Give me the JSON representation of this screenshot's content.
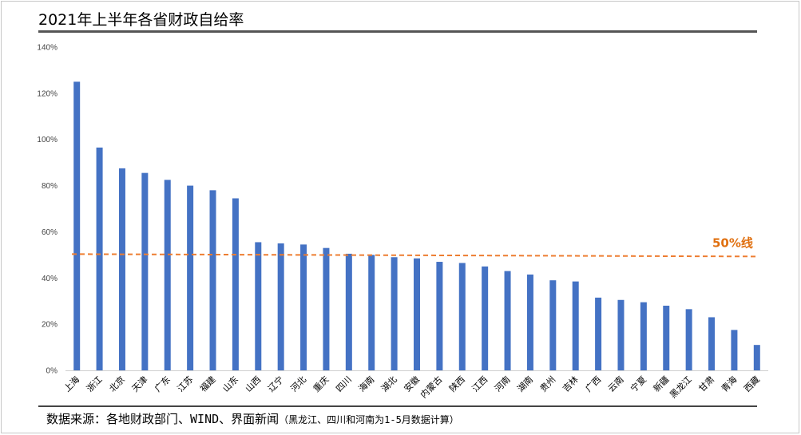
{
  "title": "2021年上半年各省财政自给率",
  "source": "数据来源：各地财政部门、WIND、界面新闻",
  "source_note": "（黑龙江、四川和河南为1-5月数据计算）",
  "chart_data": {
    "type": "bar",
    "title": "2021年上半年各省财政自给率",
    "xlabel": "",
    "ylabel": "",
    "ylim": [
      0,
      140
    ],
    "yticks": [
      "0%",
      "20%",
      "40%",
      "60%",
      "80%",
      "100%",
      "120%",
      "140%"
    ],
    "ytick_values": [
      0,
      20,
      40,
      60,
      80,
      100,
      120,
      140
    ],
    "categories": [
      "上海",
      "浙江",
      "北京",
      "天津",
      "广东",
      "江苏",
      "福建",
      "山东",
      "山西",
      "辽宁",
      "河北",
      "重庆",
      "四川",
      "海南",
      "湖北",
      "安徽",
      "内蒙古",
      "陕西",
      "江西",
      "河南",
      "湖南",
      "贵州",
      "吉林",
      "广西",
      "云南",
      "宁夏",
      "新疆",
      "黑龙江",
      "甘肃",
      "青海",
      "西藏"
    ],
    "values": [
      125,
      96.5,
      87.5,
      85.5,
      82.5,
      80,
      78,
      74.5,
      55.5,
      55,
      54.5,
      53,
      50.5,
      50,
      49,
      48.5,
      47,
      46.5,
      45,
      43,
      41.5,
      39,
      38.5,
      31.5,
      30.5,
      29.5,
      28,
      26.5,
      23,
      17.5,
      11
    ],
    "bar_color": "#4472c4",
    "grid": false,
    "reference_line": {
      "value": 50,
      "label": "50%线",
      "color": "#ed7d31",
      "style": "dashed"
    }
  }
}
